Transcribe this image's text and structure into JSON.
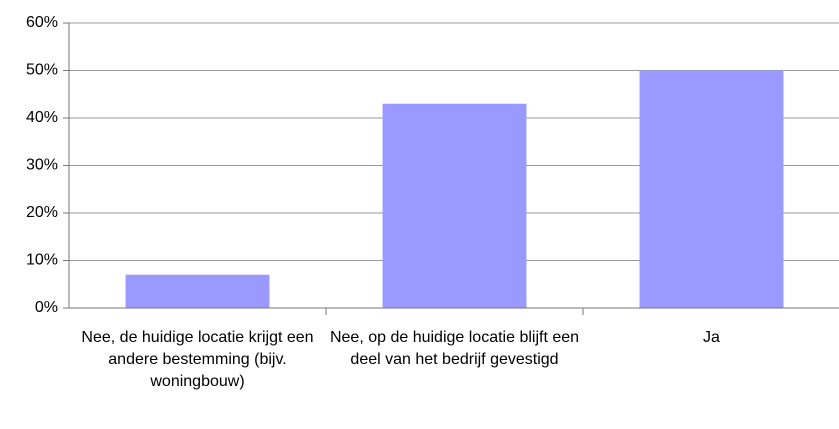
{
  "chart_data": {
    "type": "bar",
    "categories": [
      "Nee, de huidige locatie krijgt een andere bestemming (bijv. woningbouw)",
      "Nee, op de huidige locatie blijft een deel van het bedrijf gevestigd",
      "Ja"
    ],
    "values": [
      7,
      43,
      50
    ],
    "color": "#9999ff",
    "ylim": [
      0,
      60
    ],
    "yticks": [
      {
        "value": 0,
        "label": "0%"
      },
      {
        "value": 10,
        "label": "10%"
      },
      {
        "value": 20,
        "label": "20%"
      },
      {
        "value": 30,
        "label": "30%"
      },
      {
        "value": 40,
        "label": "40%"
      },
      {
        "value": 50,
        "label": "50%"
      },
      {
        "value": 60,
        "label": "60%"
      }
    ],
    "grid": true
  }
}
